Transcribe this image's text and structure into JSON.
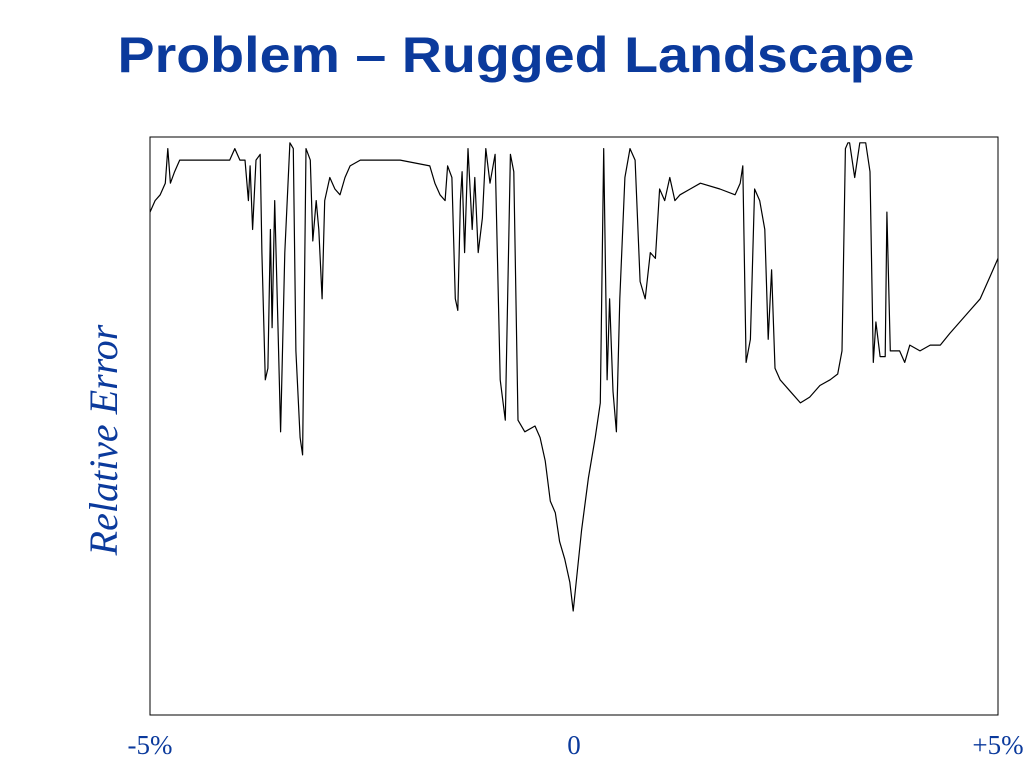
{
  "chart_data": {
    "type": "line",
    "title": "Problem – Rugged Landscape",
    "y_label": "Relative Error",
    "color": "#000000",
    "xlim": [
      -5,
      5
    ],
    "ylim": [
      0,
      100
    ],
    "xticks": [
      {
        "value": -5,
        "label": "-5%"
      },
      0,
      {
        "value": 5,
        "label": "+5%"
      }
    ],
    "x": [
      -5.0,
      -4.94,
      -4.88,
      -4.82,
      -4.79,
      -4.76,
      -4.71,
      -4.65,
      -4.41,
      -4.06,
      -4.0,
      -3.94,
      -3.88,
      -3.84,
      -3.82,
      -3.79,
      -3.75,
      -3.7,
      -3.68,
      -3.64,
      -3.61,
      -3.58,
      -3.56,
      -3.53,
      -3.49,
      -3.46,
      -3.41,
      -3.35,
      -3.31,
      -3.28,
      -3.23,
      -3.2,
      -3.16,
      -3.11,
      -3.08,
      -3.04,
      -3.01,
      -2.97,
      -2.94,
      -2.88,
      -2.82,
      -2.76,
      -2.7,
      -2.64,
      -2.52,
      -2.05,
      -1.7,
      -1.64,
      -1.58,
      -1.52,
      -1.49,
      -1.44,
      -1.4,
      -1.37,
      -1.34,
      -1.32,
      -1.29,
      -1.25,
      -1.2,
      -1.17,
      -1.13,
      -1.08,
      -1.04,
      -0.99,
      -0.93,
      -0.87,
      -0.81,
      -0.75,
      -0.71,
      -0.66,
      -0.58,
      -0.46,
      -0.4,
      -0.34,
      -0.28,
      -0.22,
      -0.17,
      -0.11,
      -0.05,
      -0.01,
      0.04,
      0.09,
      0.17,
      0.25,
      0.31,
      0.35,
      0.39,
      0.42,
      0.46,
      0.5,
      0.54,
      0.6,
      0.66,
      0.72,
      0.78,
      0.84,
      0.9,
      0.96,
      1.01,
      1.07,
      1.13,
      1.19,
      1.25,
      1.37,
      1.49,
      1.72,
      1.9,
      1.96,
      1.99,
      2.03,
      2.08,
      2.13,
      2.19,
      2.25,
      2.29,
      2.33,
      2.37,
      2.43,
      2.55,
      2.67,
      2.78,
      2.9,
      3.02,
      3.11,
      3.16,
      3.2,
      3.23,
      3.25,
      3.31,
      3.37,
      3.44,
      3.49,
      3.53,
      3.56,
      3.61,
      3.67,
      3.69,
      3.73,
      3.79,
      3.84,
      3.9,
      3.96,
      4.08,
      4.2,
      4.32,
      4.43,
      4.55,
      4.67,
      4.79,
      4.91,
      5.0
    ],
    "values": [
      87,
      89,
      90,
      92,
      98,
      92,
      94,
      96,
      96,
      96,
      98,
      96,
      96,
      89,
      95,
      84,
      96,
      97,
      80,
      58,
      60,
      84,
      67,
      89,
      67,
      49,
      80,
      99,
      98,
      63,
      48,
      45,
      98,
      96,
      82,
      89,
      84,
      72,
      89,
      93,
      91,
      90,
      93,
      95,
      96,
      96,
      95,
      92,
      90,
      89,
      95,
      93,
      72,
      70,
      89,
      94,
      80,
      98,
      84,
      93,
      80,
      86,
      98,
      92,
      97,
      58,
      51,
      97,
      94,
      51,
      49,
      50,
      48,
      44,
      37,
      35,
      30,
      27,
      23,
      18,
      25,
      32,
      41,
      48,
      54,
      98,
      58,
      72,
      56,
      49,
      72,
      93,
      98,
      96,
      75,
      72,
      80,
      79,
      91,
      89,
      93,
      89,
      90,
      91,
      92,
      91,
      90,
      92,
      95,
      61,
      65,
      91,
      89,
      84,
      65,
      77,
      60,
      58,
      56,
      54,
      55,
      57,
      58,
      59,
      63,
      98,
      99,
      99,
      93,
      99,
      99,
      94,
      61,
      68,
      62,
      62,
      87,
      63,
      63,
      63,
      61,
      64,
      63,
      64,
      64,
      66,
      68,
      70,
      72,
      76,
      79
    ]
  }
}
